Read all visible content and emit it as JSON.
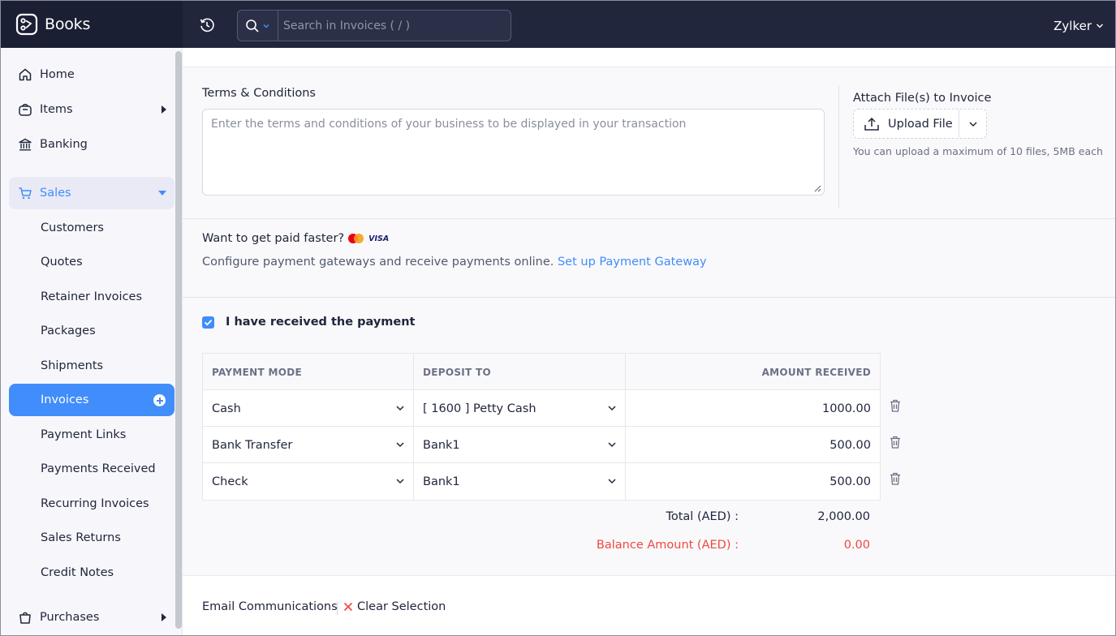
{
  "app": {
    "name": "Books"
  },
  "header": {
    "search_placeholder": "Search in Invoices ( / )",
    "org_name": "Zylker"
  },
  "sidebar": {
    "home": "Home",
    "items": "Items",
    "banking": "Banking",
    "sales": "Sales",
    "sales_items": [
      "Customers",
      "Quotes",
      "Retainer Invoices",
      "Packages",
      "Shipments",
      "Invoices",
      "Payment Links",
      "Payments Received",
      "Recurring Invoices",
      "Sales Returns",
      "Credit Notes"
    ],
    "purchases": "Purchases"
  },
  "terms": {
    "label": "Terms & Conditions",
    "placeholder": "Enter the terms and conditions of your business to be displayed in your transaction"
  },
  "attach": {
    "label": "Attach File(s) to Invoice",
    "upload_label": "Upload File",
    "hint": "You can upload a maximum of 10 files, 5MB each"
  },
  "gateway": {
    "question": "Want to get paid faster?",
    "visa_text": "VISA",
    "description": "Configure payment gateways and receive payments online.",
    "link": "Set up Payment Gateway"
  },
  "payment": {
    "received_label": "I have received the payment",
    "received_checked": true,
    "columns": [
      "PAYMENT MODE",
      "DEPOSIT TO",
      "AMOUNT RECEIVED"
    ],
    "rows": [
      {
        "mode": "Cash",
        "deposit": "[ 1600 ] Petty Cash",
        "amount": "1000.00"
      },
      {
        "mode": "Bank Transfer",
        "deposit": "Bank1",
        "amount": "500.00"
      },
      {
        "mode": "Check",
        "deposit": "Bank1",
        "amount": "500.00"
      }
    ],
    "total_label": "Total (AED) :",
    "total_value": "2,000.00",
    "balance_label": "Balance Amount (AED) :",
    "balance_value": "0.00"
  },
  "footer": {
    "email_comm": "Email Communications",
    "clear_selection": "Clear Selection"
  },
  "colors": {
    "accent": "#408dfb",
    "topbar": "#21263c",
    "danger": "#f0483e"
  }
}
